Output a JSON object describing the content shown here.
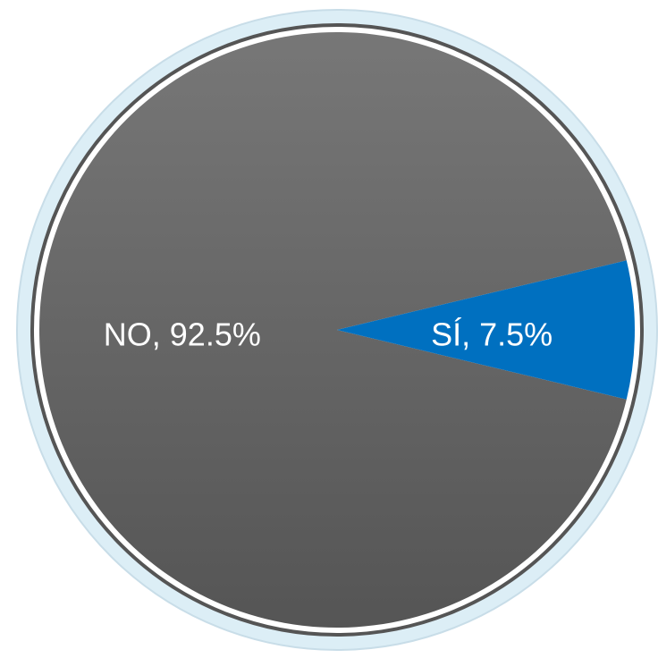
{
  "chart_data": {
    "type": "pie",
    "values": [
      92.5,
      7.5
    ],
    "value_labels": [
      "NO, 92.5%",
      "SÍ, 7.5%"
    ],
    "colors": [
      "#5c5c5c",
      "#0070c0"
    ]
  }
}
